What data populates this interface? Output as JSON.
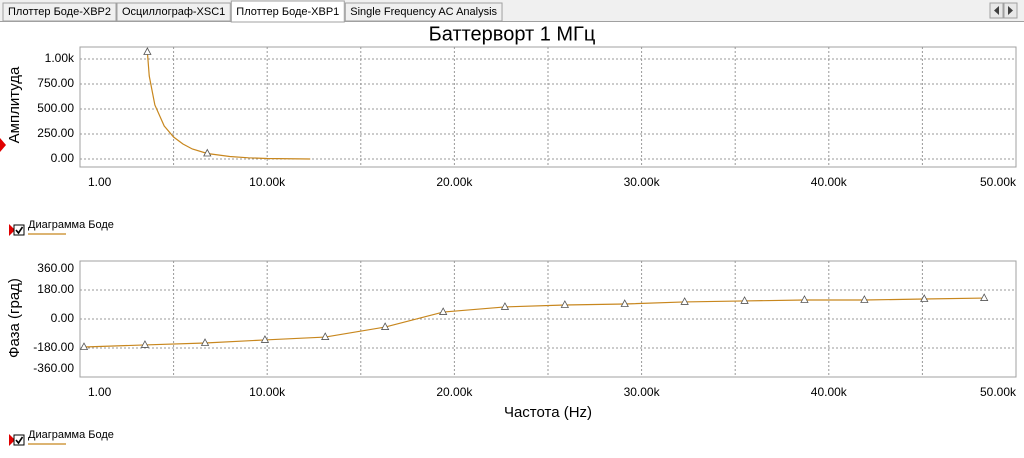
{
  "tabs": [
    "Плоттер Боде-XBP2",
    "Осциллограф-XSC1",
    "Плоттер Боде-XBP1",
    "Single Frequency AC Analysis"
  ],
  "chart_data": [
    {
      "type": "line",
      "title": "Баттерворт 1 МГц",
      "ylabel": "Амплитуда",
      "x": [
        3600,
        3700,
        4000,
        4500,
        5000,
        5500,
        6000,
        6800,
        8000,
        9000,
        10000,
        12300
      ],
      "series": [
        {
          "name": "Диаграмма Боде",
          "color": "#c8871e",
          "values": [
            1070,
            830,
            540,
            330,
            220,
            150,
            100,
            55,
            25,
            12,
            5,
            0
          ]
        }
      ],
      "marker_every": 7,
      "xlim": [
        1,
        50000
      ],
      "xticks": [
        {
          "value": 1,
          "label": "1.00"
        },
        {
          "value": 10000,
          "label": "10.00k"
        },
        {
          "value": 20000,
          "label": "20.00k"
        },
        {
          "value": 30000,
          "label": "30.00k"
        },
        {
          "value": 40000,
          "label": "40.00k"
        },
        {
          "value": 50000,
          "label": "50.00k"
        }
      ],
      "ylim": [
        -80,
        1120
      ],
      "yticks": [
        {
          "value": 0,
          "label": "0.00"
        },
        {
          "value": 250,
          "label": "250.00"
        },
        {
          "value": 500,
          "label": "500.00"
        },
        {
          "value": 750,
          "label": "750.00"
        },
        {
          "value": 1000,
          "label": "1.00k"
        }
      ],
      "grid": true
    },
    {
      "type": "line",
      "ylabel": "Фаза (град)",
      "xlabel": "Частота (Hz)",
      "x": [
        214,
        3470,
        6680,
        9880,
        13100,
        16300,
        19400,
        22700,
        25900,
        29100,
        32300,
        35500,
        38700,
        41900,
        45100,
        48300
      ],
      "series": [
        {
          "name": "Диаграмма Боде",
          "color": "#c8871e",
          "values": [
            -174,
            -161,
            -149,
            -130,
            -112,
            -50,
            43,
            75,
            87,
            93,
            106,
            112,
            118,
            118,
            124,
            130
          ]
        }
      ],
      "marker_every": 1,
      "xlim": [
        1,
        50000
      ],
      "xticks": [
        {
          "value": 1,
          "label": "1.00"
        },
        {
          "value": 10000,
          "label": "10.00k"
        },
        {
          "value": 20000,
          "label": "20.00k"
        },
        {
          "value": 30000,
          "label": "30.00k"
        },
        {
          "value": 40000,
          "label": "40.00k"
        },
        {
          "value": 50000,
          "label": "50.00k"
        }
      ],
      "ylim": [
        -360,
        360
      ],
      "yticks": [
        {
          "value": -360,
          "label": "-360.00"
        },
        {
          "value": -180,
          "label": "-180.00"
        },
        {
          "value": 0,
          "label": "0.00"
        },
        {
          "value": 180,
          "label": "180.00"
        },
        {
          "value": 360,
          "label": "360.00"
        }
      ],
      "grid": true
    }
  ]
}
